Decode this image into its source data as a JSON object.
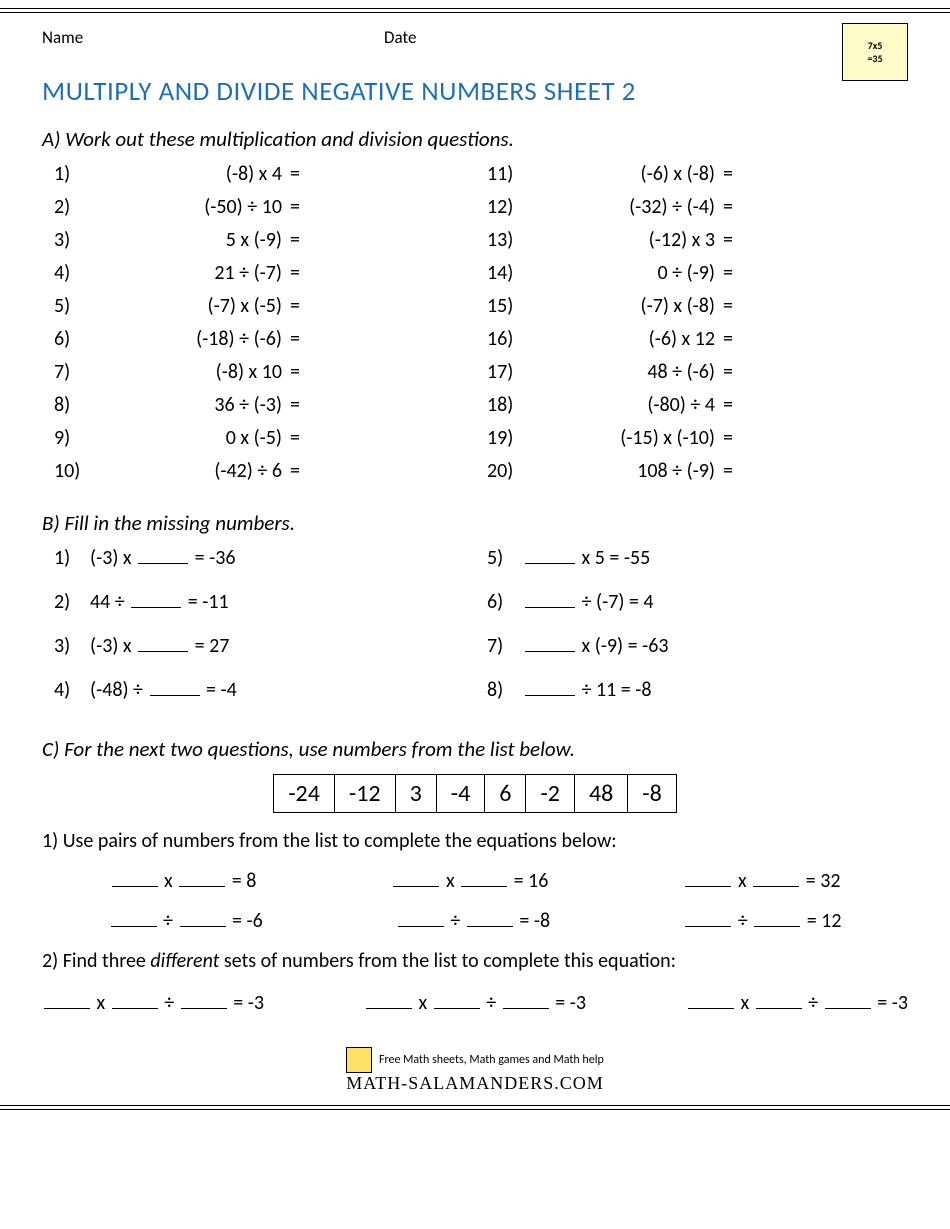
{
  "header": {
    "name_label": "Name",
    "date_label": "Date"
  },
  "title": "MULTIPLY AND DIVIDE NEGATIVE NUMBERS SHEET 2",
  "sectionA": {
    "heading": "A) Work out these multiplication and division questions.",
    "left": [
      {
        "n": "1)",
        "e": "(-8) x 4"
      },
      {
        "n": "2)",
        "e": "(-50) ÷ 10"
      },
      {
        "n": "3)",
        "e": "5 x (-9)"
      },
      {
        "n": "4)",
        "e": "21 ÷ (-7)"
      },
      {
        "n": "5)",
        "e": "(-7) x (-5)"
      },
      {
        "n": "6)",
        "e": "(-18) ÷ (-6)"
      },
      {
        "n": "7)",
        "e": "(-8) x 10"
      },
      {
        "n": "8)",
        "e": "36 ÷ (-3)"
      },
      {
        "n": "9)",
        "e": "0 x (-5)"
      },
      {
        "n": "10)",
        "e": "(-42) ÷ 6"
      }
    ],
    "right": [
      {
        "n": "11)",
        "e": "(-6) x (-8)"
      },
      {
        "n": "12)",
        "e": "(-32) ÷ (-4)"
      },
      {
        "n": "13)",
        "e": "(-12) x 3"
      },
      {
        "n": "14)",
        "e": "0 ÷ (-9)"
      },
      {
        "n": "15)",
        "e": "(-7) x (-8)"
      },
      {
        "n": "16)",
        "e": "(-6) x 12"
      },
      {
        "n": "17)",
        "e": "48 ÷ (-6)"
      },
      {
        "n": "18)",
        "e": "(-80) ÷ 4"
      },
      {
        "n": "19)",
        "e": "(-15) x (-10)"
      },
      {
        "n": "20)",
        "e": "108 ÷ (-9)"
      }
    ]
  },
  "sectionB": {
    "heading": "B) Fill in the missing numbers.",
    "left": [
      {
        "n": "1)",
        "pre": "(-3) x ",
        "post": " = -36"
      },
      {
        "n": "2)",
        "pre": "44 ÷ ",
        "post": " = -11"
      },
      {
        "n": "3)",
        "pre": "(-3) x ",
        "post": " = 27"
      },
      {
        "n": "4)",
        "pre": "(-48) ÷ ",
        "post": " = -4"
      }
    ],
    "right": [
      {
        "n": "5)",
        "pre": "",
        "mid": " x 5 = -55"
      },
      {
        "n": "6)",
        "pre": "",
        "mid": " ÷ (-7) = 4"
      },
      {
        "n": "7)",
        "pre": "",
        "mid": " x (-9) = -63"
      },
      {
        "n": "8)",
        "pre": "",
        "mid": " ÷ 11 = -8"
      }
    ]
  },
  "sectionC": {
    "heading": "C) For the next two questions, use numbers from the list below.",
    "numbers": [
      "-24",
      "-12",
      "3",
      "-4",
      "6",
      "-2",
      "48",
      "-8"
    ],
    "q1": "1) Use pairs of numbers from the list to complete the equations below:",
    "row1": [
      {
        "op": "x",
        "res": "= 8"
      },
      {
        "op": "x",
        "res": "= 16"
      },
      {
        "op": "x",
        "res": "= 32"
      }
    ],
    "row2": [
      {
        "op": "÷",
        "res": "= -6"
      },
      {
        "op": "÷",
        "res": "= -8"
      },
      {
        "op": "÷",
        "res": "= 12"
      }
    ],
    "q2_a": "2) Find three ",
    "q2_b": "different",
    "q2_c": " sets of numbers from the list to complete this equation:",
    "triple_res": "= -3"
  },
  "footer": {
    "tagline": "Free Math sheets, Math games and Math help",
    "brand": "MATH-SALAMANDERS.COM"
  }
}
